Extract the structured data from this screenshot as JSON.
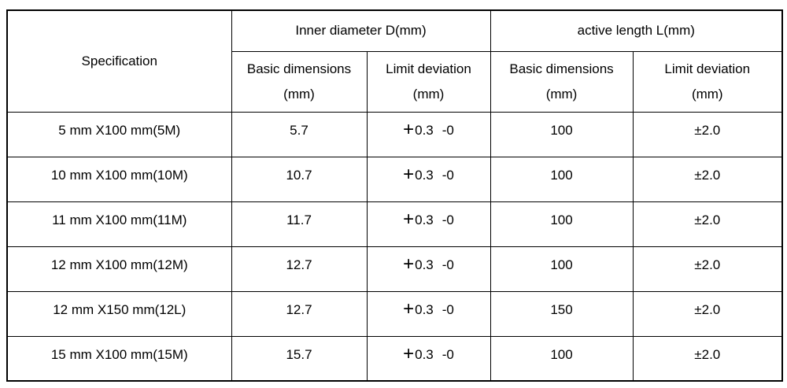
{
  "table": {
    "header": {
      "specification": "Specification",
      "groups": [
        {
          "label": "Inner diameter D(mm)"
        },
        {
          "label": "active length L(mm)"
        }
      ],
      "subheaders": [
        {
          "line1": "Basic dimensions",
          "line2": "(mm)"
        },
        {
          "line1": "Limit deviation",
          "line2": "(mm)"
        },
        {
          "line1": "Basic dimensions",
          "line2": "(mm)"
        },
        {
          "line1": "Limit deviation",
          "line2": "(mm)"
        }
      ]
    },
    "rows": [
      {
        "spec": "5 mm X100 mm(5M)",
        "inner_basic": "5.7",
        "dev_plus": "+",
        "dev_upper": "0.3",
        "dev_lower": "-0",
        "length_basic": "100",
        "length_dev": "±2.0"
      },
      {
        "spec": "10 mm X100 mm(10M)",
        "inner_basic": "10.7",
        "dev_plus": "+",
        "dev_upper": "0.3",
        "dev_lower": "-0",
        "length_basic": "100",
        "length_dev": "±2.0"
      },
      {
        "spec": "11 mm X100 mm(11M)",
        "inner_basic": "11.7",
        "dev_plus": "+",
        "dev_upper": "0.3",
        "dev_lower": "-0",
        "length_basic": "100",
        "length_dev": "±2.0"
      },
      {
        "spec": "12 mm X100 mm(12M)",
        "inner_basic": "12.7",
        "dev_plus": "+",
        "dev_upper": "0.3",
        "dev_lower": "-0",
        "length_basic": "100",
        "length_dev": "±2.0"
      },
      {
        "spec": "12 mm X150 mm(12L)",
        "inner_basic": "12.7",
        "dev_plus": "+",
        "dev_upper": "0.3",
        "dev_lower": "-0",
        "length_basic": "150",
        "length_dev": "±2.0"
      },
      {
        "spec": "15 mm X100 mm(15M)",
        "inner_basic": "15.7",
        "dev_plus": "+",
        "dev_upper": "0.3",
        "dev_lower": "-0",
        "length_basic": "100",
        "length_dev": "±2.0"
      }
    ],
    "colors": {
      "border": "#000000",
      "text": "#000000",
      "background": "#ffffff"
    }
  }
}
